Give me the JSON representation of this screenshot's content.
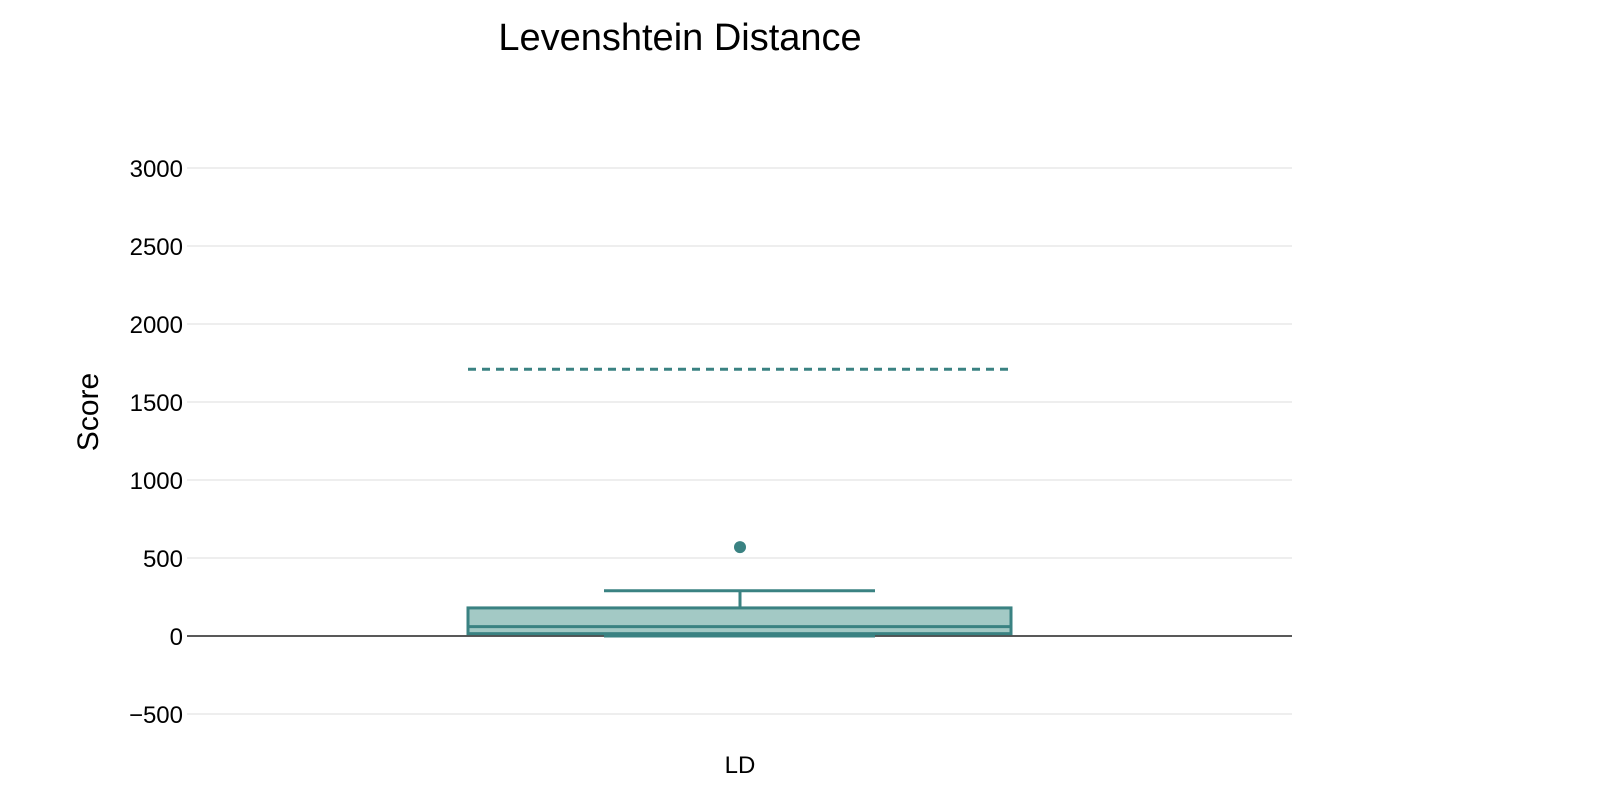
{
  "chart_data": {
    "type": "box",
    "title": "Levenshtein Distance",
    "xlabel": "",
    "ylabel": "Score",
    "ylim": [
      -650,
      3150
    ],
    "yticks": [
      -500,
      0,
      500,
      1000,
      1500,
      2000,
      2500,
      3000
    ],
    "ytick_labels": [
      "−500",
      "0",
      "500",
      "1000",
      "1500",
      "2000",
      "2500",
      "3000"
    ],
    "grid": true,
    "categories": [
      "LD"
    ],
    "series": [
      {
        "category": "LD",
        "min": 0,
        "q1": 15,
        "median": 60,
        "q3": 180,
        "max": 290,
        "outliers": [
          570
        ],
        "reference_line": 1710
      }
    ],
    "colors": {
      "line": "#3a8282",
      "fill": "#a3c9c5",
      "grid": "#e8e8e8",
      "zeroline": "#222222"
    }
  }
}
